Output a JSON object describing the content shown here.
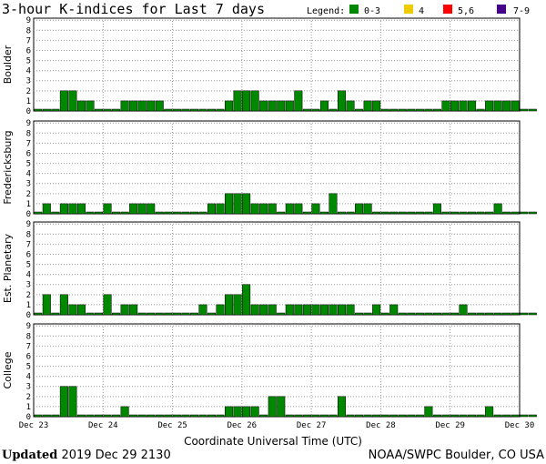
{
  "chart_data": {
    "type": "bar",
    "title": "3-hour K-indices for Last 7 days",
    "legend": {
      "label": "Legend:",
      "placement": "top-right",
      "items": [
        {
          "label": "0-3",
          "color": "#008800"
        },
        {
          "label": "4",
          "color": "#eecc00"
        },
        {
          "label": "5,6",
          "color": "#ff0000"
        },
        {
          "label": "7-9",
          "color": "#440088"
        }
      ]
    },
    "xlabel": "Coordinate Universal Time (UTC)",
    "x_ticks": [
      "Dec 23",
      "Dec 24",
      "Dec 25",
      "Dec 26",
      "Dec 27",
      "Dec 28",
      "Dec 29",
      "Dec 30"
    ],
    "y_ticks": [
      "0",
      "1",
      "2",
      "3",
      "4",
      "5",
      "6",
      "7",
      "8",
      "9"
    ],
    "ylim": [
      0,
      9
    ],
    "intervals_per_day": 8,
    "zero_bar_color": "#008800",
    "bar_color": "#008800",
    "grid": true,
    "panels": [
      {
        "name": "Boulder",
        "values": [
          0,
          0,
          0,
          2,
          2,
          1,
          1,
          0,
          0,
          0,
          1,
          1,
          1,
          1,
          1,
          0,
          0,
          0,
          0,
          0,
          0,
          0,
          1,
          2,
          2,
          2,
          1,
          1,
          1,
          1,
          2,
          0,
          0,
          1,
          0,
          2,
          1,
          0,
          1,
          1,
          0,
          0,
          0,
          0,
          0,
          0,
          0,
          1,
          1,
          1,
          1,
          0,
          1,
          1,
          1,
          1,
          0,
          0
        ]
      },
      {
        "name": "Fredericksburg",
        "values": [
          0,
          1,
          0,
          1,
          1,
          1,
          0,
          0,
          1,
          0,
          0,
          1,
          1,
          1,
          0,
          0,
          0,
          0,
          0,
          0,
          1,
          1,
          2,
          2,
          2,
          1,
          1,
          1,
          0,
          1,
          1,
          0,
          1,
          0,
          2,
          0,
          0,
          1,
          1,
          0,
          0,
          0,
          0,
          0,
          0,
          0,
          1,
          0,
          0,
          0,
          0,
          0,
          0,
          1,
          0,
          0,
          0,
          0
        ]
      },
      {
        "name": "Est. Planetary",
        "values": [
          0,
          2,
          0,
          2,
          1,
          1,
          0,
          0,
          2,
          0,
          1,
          1,
          0,
          0,
          0,
          0,
          0,
          0,
          0,
          1,
          0,
          1,
          2,
          2,
          3,
          1,
          1,
          1,
          0,
          1,
          1,
          1,
          1,
          1,
          1,
          1,
          1,
          0,
          0,
          1,
          0,
          1,
          0,
          0,
          0,
          0,
          0,
          0,
          0,
          1,
          0,
          0,
          0,
          0,
          0,
          0,
          0,
          0
        ]
      },
      {
        "name": "College",
        "values": [
          0,
          0,
          0,
          3,
          3,
          0,
          0,
          0,
          0,
          0,
          1,
          0,
          0,
          0,
          0,
          0,
          0,
          0,
          0,
          0,
          0,
          0,
          1,
          1,
          1,
          1,
          0,
          2,
          2,
          0,
          0,
          0,
          0,
          0,
          0,
          2,
          0,
          0,
          0,
          0,
          0,
          0,
          0,
          0,
          0,
          1,
          0,
          0,
          0,
          0,
          0,
          0,
          1,
          0,
          0,
          0,
          0,
          0
        ]
      }
    ]
  },
  "footer": {
    "updated_label": "Updated",
    "updated_value": "2019 Dec 29 2130",
    "source": "NOAA/SWPC Boulder, CO USA"
  }
}
